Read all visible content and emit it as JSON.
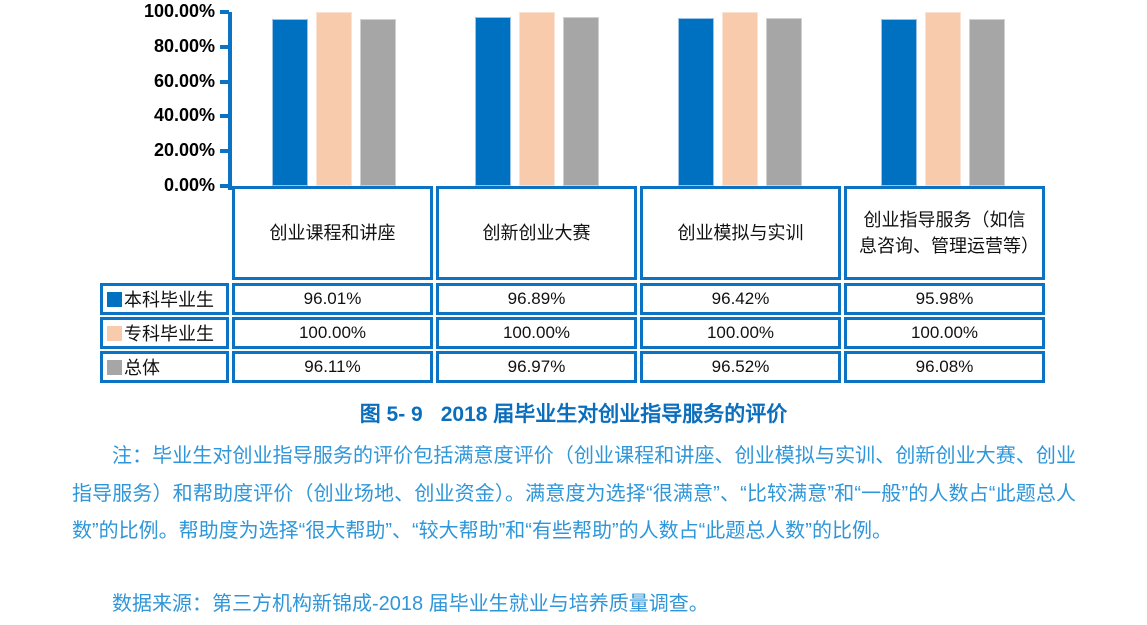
{
  "chart_data": {
    "type": "bar",
    "categories": [
      "创业课程和讲座",
      "创新创业大赛",
      "创业模拟与实训",
      "创业指导服务（如信息咨询、管理运营等）"
    ],
    "series": [
      {
        "name": "本科毕业生",
        "color": "#0070C0",
        "edge": "#9CC3E5",
        "values": [
          96.01,
          96.89,
          96.42,
          95.98
        ],
        "labels": [
          "96.01%",
          "96.89%",
          "96.42%",
          "95.98%"
        ]
      },
      {
        "name": "专科毕业生",
        "color": "#F8CBAD",
        "edge": "#FBE3D3",
        "values": [
          100.0,
          100.0,
          100.0,
          100.0
        ],
        "labels": [
          "100.00%",
          "100.00%",
          "100.00%",
          "100.00%"
        ]
      },
      {
        "name": "总体",
        "color": "#A6A6A6",
        "edge": "#D0D0D0",
        "values": [
          96.11,
          96.97,
          96.52,
          96.08
        ],
        "labels": [
          "96.11%",
          "96.97%",
          "96.52%",
          "96.08%"
        ]
      }
    ],
    "y_ticks": [
      "100.00%",
      "80.00%",
      "60.00%",
      "40.00%",
      "20.00%",
      "0.00%"
    ],
    "ylim": [
      0,
      100
    ],
    "grid": false,
    "legend_position": "table-left",
    "title": "2018 届毕业生对创业指导服务的评价"
  },
  "caption": {
    "figure_label": "图 5- 9",
    "title": "2018 届毕业生对创业指导服务的评价"
  },
  "note": {
    "full": "注：毕业生对创业指导服务的评价包括满意度评价（创业课程和讲座、创业模拟与实训、创新创业大赛、创业指导服务）和帮助度评价（创业场地、创业资金）。满意度为选择“很满意”、“比较满意”和“一般”的人数占“此题总人数”的比例。帮助度为选择“很大帮助”、“较大帮助”和“有些帮助”的人数占“此题总人数”的比例。"
  },
  "source": {
    "full": "数据来源：第三方机构新锦成-2018 届毕业生就业与培养质量调查。"
  },
  "colors": {
    "table_border": "#0C72C4",
    "axis": "#0C72C4",
    "caption_text": "#0A6EBD",
    "note_text": "#2E96D9",
    "bar_blue": "#0070C0",
    "bar_peach": "#F8CBAD",
    "bar_gray": "#A6A6A6"
  }
}
